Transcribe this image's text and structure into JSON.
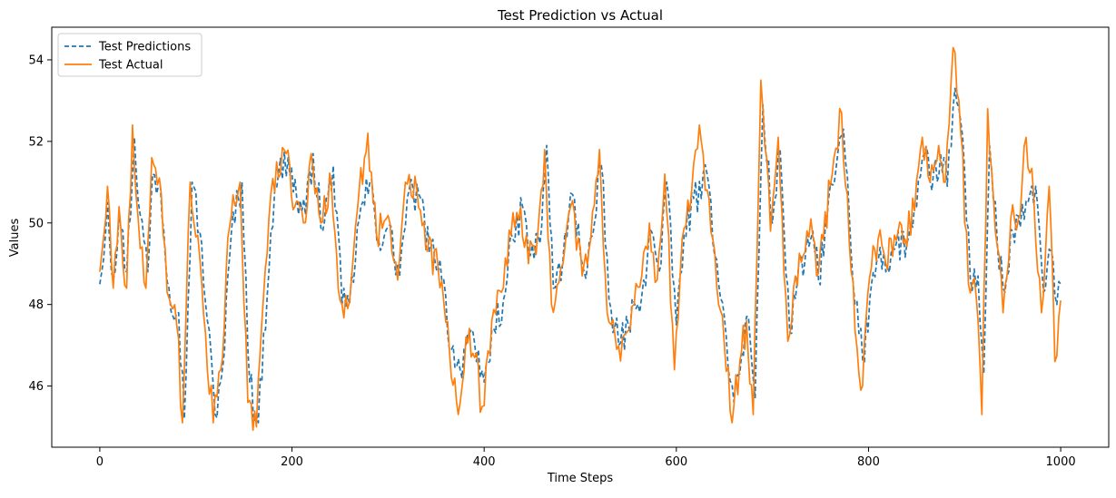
{
  "chart_data": {
    "type": "line",
    "title": "Test Prediction vs Actual",
    "xlabel": "Time Steps",
    "ylabel": "Values",
    "xlim": [
      -50,
      1050
    ],
    "ylim": [
      44.5,
      54.8
    ],
    "xticks": [
      0,
      200,
      400,
      600,
      800,
      1000
    ],
    "yticks": [
      46,
      48,
      50,
      52,
      54
    ],
    "legend": "top-left",
    "grid": false,
    "series": [
      {
        "name": "Test Predictions",
        "color": "#1f77b4",
        "style": "dashed",
        "anchors": [
          [
            0,
            48.5
          ],
          [
            8,
            50.5
          ],
          [
            14,
            48.6
          ],
          [
            20,
            50.2
          ],
          [
            28,
            48.8
          ],
          [
            36,
            52.1
          ],
          [
            42,
            50.2
          ],
          [
            50,
            48.8
          ],
          [
            55,
            51.2
          ],
          [
            63,
            50.9
          ],
          [
            72,
            48.4
          ],
          [
            82,
            47.8
          ],
          [
            88,
            45.2
          ],
          [
            96,
            51.0
          ],
          [
            104,
            49.8
          ],
          [
            112,
            47.6
          ],
          [
            120,
            45.3
          ],
          [
            128,
            46.5
          ],
          [
            137,
            49.8
          ],
          [
            148,
            51.0
          ],
          [
            156,
            46.1
          ],
          [
            165,
            45.1
          ],
          [
            178,
            49.8
          ],
          [
            186,
            51.2
          ],
          [
            196,
            51.6
          ],
          [
            205,
            50.6
          ],
          [
            214,
            50.2
          ],
          [
            222,
            51.7
          ],
          [
            232,
            49.8
          ],
          [
            243,
            51.4
          ],
          [
            252,
            48.0
          ],
          [
            260,
            48.0
          ],
          [
            270,
            50.1
          ],
          [
            281,
            51.0
          ],
          [
            290,
            49.6
          ],
          [
            300,
            49.9
          ],
          [
            312,
            48.7
          ],
          [
            320,
            50.6
          ],
          [
            332,
            50.7
          ],
          [
            343,
            49.3
          ],
          [
            354,
            49.1
          ],
          [
            366,
            46.9
          ],
          [
            375,
            46.4
          ],
          [
            383,
            47.3
          ],
          [
            392,
            46.6
          ],
          [
            400,
            46.1
          ],
          [
            410,
            47.4
          ],
          [
            420,
            48.1
          ],
          [
            430,
            49.6
          ],
          [
            440,
            50.4
          ],
          [
            448,
            49.2
          ],
          [
            458,
            49.5
          ],
          [
            465,
            51.9
          ],
          [
            472,
            48.4
          ],
          [
            482,
            49.1
          ],
          [
            492,
            50.7
          ],
          [
            504,
            48.8
          ],
          [
            513,
            49.7
          ],
          [
            522,
            51.4
          ],
          [
            530,
            48.1
          ],
          [
            540,
            47.0
          ],
          [
            550,
            47.5
          ],
          [
            558,
            47.9
          ],
          [
            566,
            48.6
          ],
          [
            574,
            49.8
          ],
          [
            582,
            48.8
          ],
          [
            590,
            51.0
          ],
          [
            600,
            47.5
          ],
          [
            608,
            49.7
          ],
          [
            618,
            50.6
          ],
          [
            626,
            50.6
          ],
          [
            632,
            51.2
          ],
          [
            642,
            49.1
          ],
          [
            652,
            47.2
          ],
          [
            660,
            45.6
          ],
          [
            668,
            46.8
          ],
          [
            675,
            47.7
          ],
          [
            682,
            45.7
          ],
          [
            690,
            52.9
          ],
          [
            700,
            50.0
          ],
          [
            708,
            51.8
          ],
          [
            718,
            47.3
          ],
          [
            726,
            48.6
          ],
          [
            734,
            49.1
          ],
          [
            742,
            49.8
          ],
          [
            748,
            48.6
          ],
          [
            755,
            49.9
          ],
          [
            766,
            51.3
          ],
          [
            774,
            52.3
          ],
          [
            784,
            48.5
          ],
          [
            794,
            46.6
          ],
          [
            805,
            48.8
          ],
          [
            812,
            49.4
          ],
          [
            820,
            48.9
          ],
          [
            829,
            49.5
          ],
          [
            840,
            49.5
          ],
          [
            850,
            50.4
          ],
          [
            858,
            51.7
          ],
          [
            866,
            50.8
          ],
          [
            875,
            51.7
          ],
          [
            882,
            50.9
          ],
          [
            890,
            53.3
          ],
          [
            898,
            52.1
          ],
          [
            906,
            48.6
          ],
          [
            914,
            48.7
          ],
          [
            920,
            46.3
          ],
          [
            926,
            51.9
          ],
          [
            934,
            49.5
          ],
          [
            942,
            48.3
          ],
          [
            950,
            49.8
          ],
          [
            958,
            49.9
          ],
          [
            966,
            50.5
          ],
          [
            974,
            50.9
          ],
          [
            982,
            48.3
          ],
          [
            990,
            49.3
          ],
          [
            996,
            48.0
          ],
          [
            1000,
            48.5
          ]
        ]
      },
      {
        "name": "Test Actual",
        "color": "#ff7f0e",
        "style": "solid",
        "anchors": [
          [
            0,
            48.8
          ],
          [
            8,
            50.9
          ],
          [
            14,
            48.4
          ],
          [
            20,
            50.4
          ],
          [
            28,
            48.4
          ],
          [
            34,
            52.4
          ],
          [
            40,
            50.1
          ],
          [
            48,
            48.4
          ],
          [
            54,
            51.6
          ],
          [
            62,
            51.1
          ],
          [
            70,
            48.3
          ],
          [
            80,
            47.5
          ],
          [
            86,
            45.1
          ],
          [
            94,
            51.0
          ],
          [
            102,
            49.7
          ],
          [
            110,
            47.3
          ],
          [
            118,
            45.1
          ],
          [
            126,
            46.4
          ],
          [
            135,
            49.9
          ],
          [
            146,
            51.0
          ],
          [
            154,
            45.6
          ],
          [
            163,
            45.0
          ],
          [
            176,
            50.1
          ],
          [
            184,
            51.5
          ],
          [
            194,
            51.7
          ],
          [
            203,
            50.4
          ],
          [
            212,
            50.0
          ],
          [
            220,
            51.7
          ],
          [
            230,
            50.0
          ],
          [
            241,
            51.0
          ],
          [
            250,
            48.1
          ],
          [
            258,
            47.9
          ],
          [
            268,
            50.3
          ],
          [
            279,
            52.2
          ],
          [
            288,
            49.7
          ],
          [
            298,
            50.1
          ],
          [
            310,
            48.6
          ],
          [
            318,
            51.0
          ],
          [
            330,
            50.8
          ],
          [
            341,
            49.3
          ],
          [
            352,
            48.9
          ],
          [
            364,
            46.8
          ],
          [
            373,
            45.3
          ],
          [
            381,
            47.2
          ],
          [
            390,
            46.7
          ],
          [
            398,
            45.5
          ],
          [
            408,
            47.6
          ],
          [
            418,
            48.3
          ],
          [
            428,
            49.7
          ],
          [
            438,
            50.4
          ],
          [
            446,
            49.0
          ],
          [
            456,
            49.8
          ],
          [
            463,
            51.8
          ],
          [
            470,
            48.0
          ],
          [
            480,
            48.9
          ],
          [
            490,
            50.4
          ],
          [
            502,
            48.7
          ],
          [
            511,
            49.6
          ],
          [
            520,
            51.8
          ],
          [
            528,
            47.8
          ],
          [
            538,
            46.9
          ],
          [
            548,
            47.3
          ],
          [
            556,
            48.0
          ],
          [
            564,
            48.7
          ],
          [
            572,
            50.0
          ],
          [
            580,
            48.6
          ],
          [
            588,
            51.2
          ],
          [
            598,
            46.4
          ],
          [
            606,
            49.6
          ],
          [
            616,
            50.8
          ],
          [
            624,
            52.4
          ],
          [
            630,
            50.8
          ],
          [
            640,
            49.3
          ],
          [
            650,
            47.0
          ],
          [
            658,
            45.1
          ],
          [
            666,
            46.6
          ],
          [
            673,
            47.6
          ],
          [
            680,
            45.3
          ],
          [
            688,
            53.5
          ],
          [
            698,
            49.8
          ],
          [
            706,
            52.1
          ],
          [
            716,
            47.1
          ],
          [
            724,
            48.7
          ],
          [
            732,
            49.2
          ],
          [
            740,
            50.1
          ],
          [
            746,
            48.7
          ],
          [
            753,
            49.6
          ],
          [
            764,
            51.6
          ],
          [
            772,
            52.7
          ],
          [
            782,
            48.8
          ],
          [
            792,
            45.9
          ],
          [
            803,
            48.9
          ],
          [
            810,
            49.6
          ],
          [
            818,
            49.0
          ],
          [
            827,
            49.7
          ],
          [
            838,
            49.6
          ],
          [
            848,
            50.3
          ],
          [
            856,
            52.1
          ],
          [
            864,
            51.0
          ],
          [
            873,
            51.9
          ],
          [
            880,
            51.0
          ],
          [
            888,
            54.3
          ],
          [
            896,
            52.2
          ],
          [
            904,
            48.5
          ],
          [
            912,
            48.2
          ],
          [
            918,
            45.3
          ],
          [
            924,
            52.8
          ],
          [
            932,
            49.8
          ],
          [
            940,
            47.8
          ],
          [
            948,
            50.1
          ],
          [
            956,
            50.1
          ],
          [
            964,
            52.1
          ],
          [
            972,
            50.6
          ],
          [
            980,
            47.8
          ],
          [
            988,
            50.9
          ],
          [
            994,
            46.6
          ],
          [
            1000,
            48.1
          ]
        ]
      }
    ]
  }
}
